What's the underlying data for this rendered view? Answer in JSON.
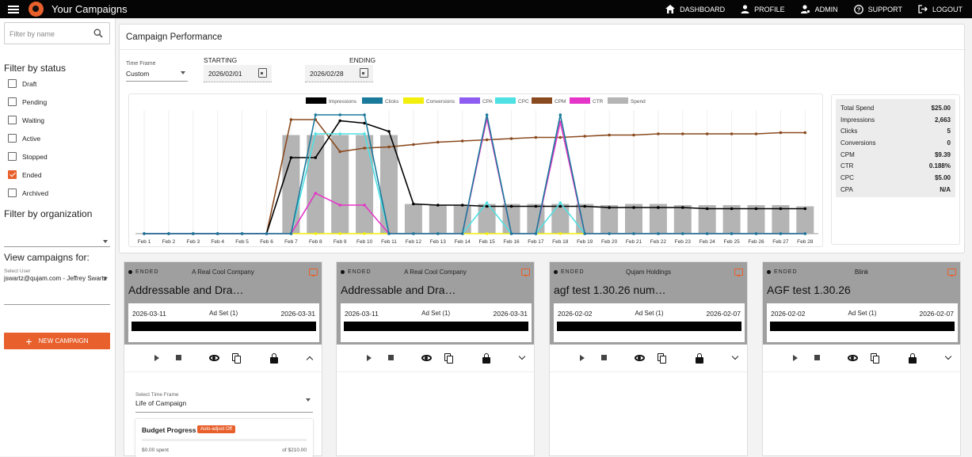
{
  "app": {
    "title": "Your Campaigns"
  },
  "topnav": [
    {
      "label": "DASHBOARD",
      "icon": "home-icon"
    },
    {
      "label": "PROFILE",
      "icon": "person-icon"
    },
    {
      "label": "ADMIN",
      "icon": "admin-icon"
    },
    {
      "label": "SUPPORT",
      "icon": "help-icon"
    },
    {
      "label": "LOGOUT",
      "icon": "logout-icon"
    }
  ],
  "sidebar": {
    "filter_placeholder": "Filter by name",
    "status_heading": "Filter by status",
    "statuses": [
      {
        "label": "Draft",
        "checked": false
      },
      {
        "label": "Pending",
        "checked": false
      },
      {
        "label": "Waiting",
        "checked": false
      },
      {
        "label": "Active",
        "checked": false
      },
      {
        "label": "Stopped",
        "checked": false
      },
      {
        "label": "Ended",
        "checked": true
      },
      {
        "label": "Archived",
        "checked": false
      }
    ],
    "org_heading": "Filter by organization",
    "view_heading": "View campaigns for:",
    "user_label": "Select User",
    "user_value": "jswartz@qujam.com - Jeffrey Swartz",
    "new_campaign": "NEW CAMPAIGN"
  },
  "performance": {
    "title": "Campaign Performance",
    "timeframe_label": "Time Frame",
    "timeframe_value": "Custom",
    "starting_label": "STARTING",
    "starting_value": "2026/02/01",
    "ending_label": "ENDING",
    "ending_value": "2026/02/28"
  },
  "chart_data": {
    "type": "line",
    "legend": [
      {
        "name": "Impressions",
        "color": "#000000"
      },
      {
        "name": "Clicks",
        "color": "#1a7a9b"
      },
      {
        "name": "Conversions",
        "color": "#f2ef0c"
      },
      {
        "name": "CPA",
        "color": "#8e5cf0"
      },
      {
        "name": "CPC",
        "color": "#4fe0e3"
      },
      {
        "name": "CPM",
        "color": "#8a4a1f"
      },
      {
        "name": "CTR",
        "color": "#e535c8"
      },
      {
        "name": "Spend",
        "color": "#b4b4b4"
      }
    ],
    "categories": [
      "Feb 1",
      "Feb 2",
      "Feb 3",
      "Feb 4",
      "Feb 5",
      "Feb 6",
      "Feb 7",
      "Feb 8",
      "Feb 9",
      "Feb 10",
      "Feb 11",
      "Feb 12",
      "Feb 13",
      "Feb 14",
      "Feb 15",
      "Feb 16",
      "Feb 17",
      "Feb 18",
      "Feb 19",
      "Feb 20",
      "Feb 21",
      "Feb 22",
      "Feb 23",
      "Feb 24",
      "Feb 25",
      "Feb 26",
      "Feb 27",
      "Feb 28"
    ],
    "series": [
      {
        "name": "Spend",
        "values": [
          0,
          0,
          0,
          0,
          0,
          0,
          0.83,
          0.83,
          0.83,
          0.83,
          0.83,
          0.25,
          0.24,
          0.24,
          0.25,
          0.25,
          0.25,
          0.25,
          0.25,
          0.24,
          0.25,
          0.25,
          0.24,
          0.24,
          0.24,
          0.24,
          0.24,
          0.23
        ]
      },
      {
        "name": "Impressions",
        "values": [
          0,
          0,
          0,
          0,
          0,
          0,
          0.64,
          0.64,
          0.95,
          0.93,
          0.86,
          0.25,
          0.24,
          0.24,
          0.23,
          0.23,
          0.23,
          0.23,
          0.23,
          0.22,
          0.22,
          0.22,
          0.22,
          0.21,
          0.21,
          0.21,
          0.21,
          0.21
        ]
      },
      {
        "name": "CPM",
        "values": [
          0,
          0,
          0,
          0,
          0,
          0,
          0.96,
          0.96,
          0.69,
          0.72,
          0.73,
          0.75,
          0.77,
          0.78,
          0.79,
          0.8,
          0.81,
          0.81,
          0.82,
          0.83,
          0.83,
          0.84,
          0.84,
          0.84,
          0.84,
          0.84,
          0.85,
          0.85
        ]
      },
      {
        "name": "CPC",
        "values": [
          0,
          0,
          0,
          0,
          0,
          0,
          0,
          0.84,
          0.84,
          0.84,
          0,
          0,
          0,
          0,
          0.26,
          0,
          0,
          0.26,
          0,
          0,
          0,
          0,
          0,
          0,
          0,
          0,
          0,
          0
        ]
      },
      {
        "name": "Clicks",
        "values": [
          0,
          0,
          0,
          0,
          0,
          0,
          0,
          1,
          1,
          1,
          0,
          0,
          0,
          0,
          1,
          0,
          0,
          1,
          0,
          0,
          0,
          0,
          0,
          0,
          0,
          0,
          0,
          0
        ]
      },
      {
        "name": "CTR",
        "values": [
          0,
          0,
          0,
          0,
          0,
          0,
          0,
          0.34,
          0.24,
          0.24,
          0,
          0,
          0,
          0,
          0.97,
          0,
          0,
          0.94,
          0,
          0,
          0,
          0,
          0,
          0,
          0,
          0,
          0,
          0
        ]
      },
      {
        "name": "Conversions",
        "values": [
          0,
          0,
          0,
          0,
          0,
          0,
          0,
          0,
          0,
          0,
          0,
          0,
          0,
          0,
          0,
          0,
          0,
          0,
          0,
          0,
          0,
          0,
          0,
          0,
          0,
          0,
          0,
          0
        ]
      }
    ],
    "ylim": [
      0,
      1
    ],
    "grid": true,
    "legend_position": "top"
  },
  "stats": [
    {
      "label": "Total Spend",
      "value": "$25.00"
    },
    {
      "label": "Impressions",
      "value": "2,663"
    },
    {
      "label": "Clicks",
      "value": "5"
    },
    {
      "label": "Conversions",
      "value": "0"
    },
    {
      "label": "CPM",
      "value": "$9.39"
    },
    {
      "label": "CTR",
      "value": "0.188%"
    },
    {
      "label": "CPC",
      "value": "$5.00"
    },
    {
      "label": "CPA",
      "value": "N/A"
    }
  ],
  "cards": [
    {
      "status": "ENDED",
      "company": "A Real Cool Company",
      "name": "Addressable and Dra…",
      "start": "2026-03-11",
      "adset": "Ad Set (1)",
      "end": "2026-03-31",
      "expanded": true
    },
    {
      "status": "ENDED",
      "company": "A Real Cool Company",
      "name": "Addressable and Dra…",
      "start": "2026-03-11",
      "adset": "Ad Set (1)",
      "end": "2026-03-31",
      "expanded": false
    },
    {
      "status": "ENDED",
      "company": "Qujam Holdings",
      "name": "agf test 1.30.26 num…",
      "start": "2026-02-02",
      "adset": "Ad Set (1)",
      "end": "2026-02-07",
      "expanded": false
    },
    {
      "status": "ENDED",
      "company": "Blink",
      "name": "AGF test 1.30.26",
      "start": "2026-02-02",
      "adset": "Ad Set (1)",
      "end": "2026-02-07",
      "expanded": false
    }
  ],
  "card_detail": {
    "timeframe_label": "Select Time Frame",
    "timeframe_value": "Life of Campaign",
    "budget_title": "Budget Progress",
    "badge": "Auto-adjust Off",
    "spent": "$0.00 spent",
    "total": "of $210.00"
  }
}
